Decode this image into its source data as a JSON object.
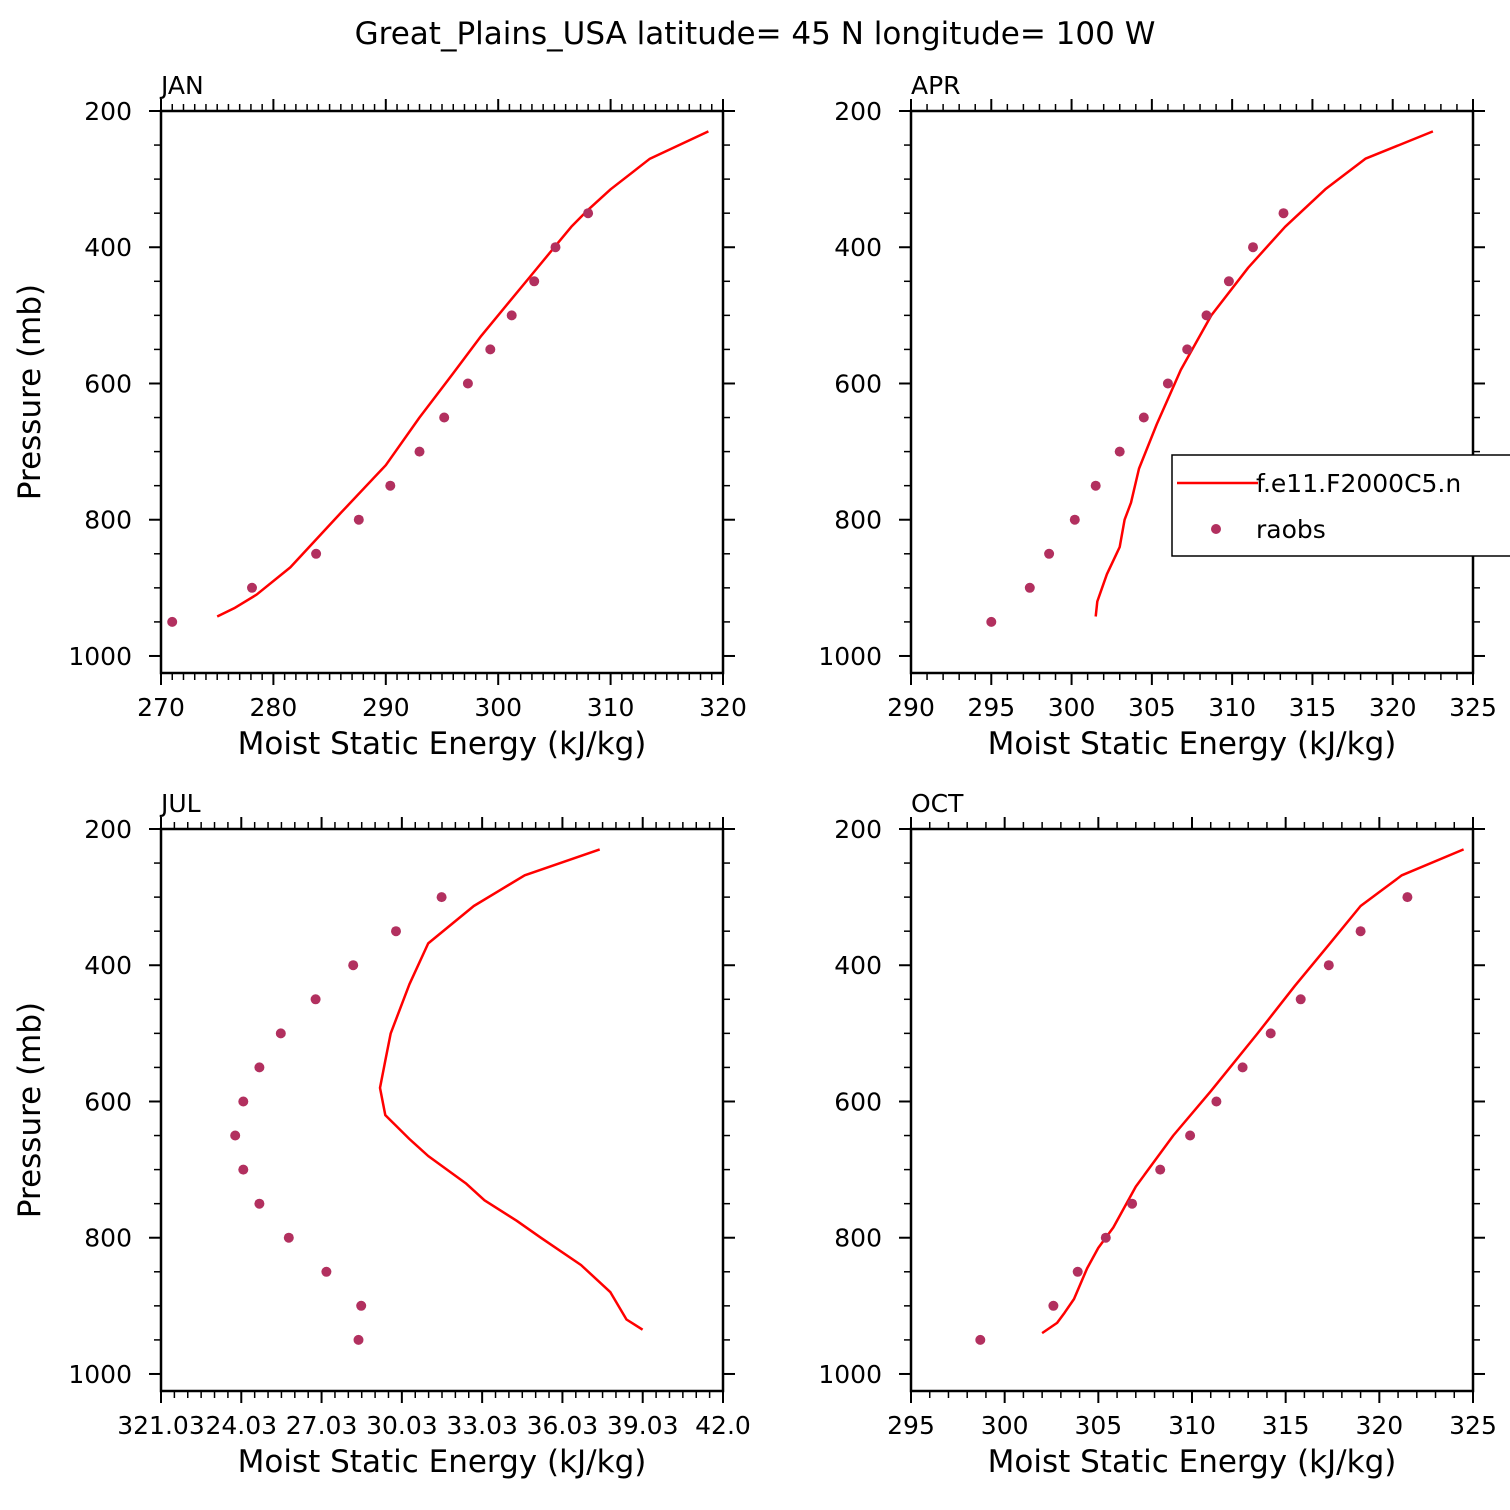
{
  "title": "Great_Plains_USA  latitude= 45 N longitude= 100 W",
  "colors": {
    "model": "#ff0000",
    "obs": "#b2305f",
    "axis": "#000000"
  },
  "legend": {
    "placement": "right, inside APR panel (clipped at page edge)",
    "entries": [
      "f.e11.F2000C5.n",
      "raobs"
    ]
  },
  "chart_data": [
    {
      "type": "line+scatter",
      "label": "JAN",
      "xlabel": "Moist Static Energy (kJ/kg)",
      "ylabel": "Pressure (mb)",
      "xlim": [
        270,
        320
      ],
      "ylim": [
        1025,
        200
      ],
      "y_scale": "linear, inverted",
      "xticks": [
        "270",
        "280",
        "290",
        "300",
        "310",
        "320"
      ],
      "yticks": [
        "200",
        "400",
        "600",
        "800",
        "1000"
      ],
      "series": [
        {
          "name": "f.e11.F2000C5.n",
          "kind": "line",
          "x": [
            318.7,
            313.5,
            310.0,
            308.0,
            306.5,
            305.0,
            303.0,
            301.0,
            298.5,
            296.0,
            293.0,
            290.0,
            286.0,
            281.5,
            278.5,
            276.5,
            275.0
          ],
          "y": [
            230,
            270,
            315,
            345,
            370,
            400,
            440,
            480,
            530,
            585,
            650,
            720,
            790,
            870,
            910,
            930,
            942
          ]
        },
        {
          "name": "raobs",
          "kind": "scatter",
          "x": [
            308.0,
            305.1,
            303.2,
            301.2,
            299.3,
            297.3,
            295.2,
            293.0,
            290.4,
            287.6,
            283.8,
            278.1,
            271.0
          ],
          "y": [
            350,
            400,
            450,
            500,
            550,
            600,
            650,
            700,
            750,
            800,
            850,
            900,
            950
          ]
        }
      ]
    },
    {
      "type": "line+scatter",
      "label": "APR",
      "xlabel": "Moist Static Energy (kJ/kg)",
      "ylabel": "",
      "xlim": [
        290,
        325
      ],
      "ylim": [
        1025,
        200
      ],
      "y_scale": "linear, inverted",
      "xticks": [
        "290",
        "295",
        "300",
        "305",
        "310",
        "315",
        "320",
        "325"
      ],
      "yticks": [
        "200",
        "400",
        "600",
        "800",
        "1000"
      ],
      "series": [
        {
          "name": "f.e11.F2000C5.n",
          "kind": "line",
          "x": [
            322.5,
            318.3,
            315.8,
            313.3,
            311.0,
            308.7,
            306.8,
            305.3,
            304.2,
            303.7,
            303.3,
            303.0,
            302.8,
            302.2,
            301.9,
            301.6,
            301.5
          ],
          "y": [
            230,
            270,
            315,
            370,
            430,
            500,
            580,
            660,
            725,
            775,
            800,
            840,
            850,
            880,
            900,
            920,
            942
          ]
        },
        {
          "name": "raobs",
          "kind": "scatter",
          "x": [
            313.2,
            311.3,
            309.8,
            308.4,
            307.2,
            306.0,
            304.5,
            303.0,
            301.5,
            300.2,
            298.6,
            297.4,
            295.0
          ],
          "y": [
            350,
            400,
            450,
            500,
            550,
            600,
            650,
            700,
            750,
            800,
            850,
            900,
            950
          ]
        }
      ]
    },
    {
      "type": "line+scatter",
      "label": "JUL",
      "xlabel": "Moist Static Energy (kJ/kg)",
      "ylabel": "Pressure (mb)",
      "xlim": [
        321.03,
        342.0
      ],
      "ylim": [
        1025,
        200
      ],
      "y_scale": "linear, inverted",
      "xticks": [
        "321.03",
        "24.03",
        "27.03",
        "30.03",
        "33.03",
        "36.03",
        "39.03",
        "42.0"
      ],
      "yticks": [
        "200",
        "400",
        "600",
        "800",
        "1000"
      ],
      "series": [
        {
          "name": "f.e11.F2000C5.n",
          "kind": "line",
          "x": [
            337.4,
            334.6,
            332.7,
            331.0,
            330.3,
            329.6,
            329.4,
            329.2,
            329.4,
            330.3,
            331.0,
            332.4,
            333.1,
            334.3,
            335.2,
            336.7,
            337.8,
            338.4,
            339.0
          ],
          "y": [
            230,
            268,
            313,
            368,
            428,
            500,
            540,
            580,
            620,
            655,
            680,
            720,
            745,
            775,
            800,
            840,
            880,
            920,
            935
          ]
        },
        {
          "name": "raobs",
          "kind": "scatter",
          "x": [
            331.5,
            329.8,
            328.2,
            326.8,
            325.5,
            324.7,
            324.1,
            323.8,
            324.1,
            324.7,
            325.8,
            327.2,
            328.5,
            328.4
          ],
          "y": [
            300,
            350,
            400,
            450,
            500,
            550,
            600,
            650,
            700,
            750,
            800,
            850,
            900,
            950
          ]
        }
      ]
    },
    {
      "type": "line+scatter",
      "label": "OCT",
      "xlabel": "Moist Static Energy (kJ/kg)",
      "ylabel": "",
      "xlim": [
        295,
        325
      ],
      "ylim": [
        1025,
        200
      ],
      "y_scale": "linear, inverted",
      "xticks": [
        "295",
        "300",
        "305",
        "310",
        "315",
        "320",
        "325"
      ],
      "yticks": [
        "200",
        "400",
        "600",
        "800",
        "1000"
      ],
      "series": [
        {
          "name": "f.e11.F2000C5.n",
          "kind": "line",
          "x": [
            324.5,
            321.2,
            319.0,
            317.3,
            315.5,
            313.5,
            311.0,
            309.0,
            307.0,
            305.8,
            305.0,
            304.4,
            303.7,
            303.2,
            302.8,
            302.0
          ],
          "y": [
            230,
            268,
            313,
            370,
            430,
            500,
            585,
            650,
            725,
            785,
            815,
            845,
            890,
            910,
            925,
            940
          ]
        },
        {
          "name": "raobs",
          "kind": "scatter",
          "x": [
            321.5,
            319.0,
            317.3,
            315.8,
            314.2,
            312.7,
            311.3,
            309.9,
            308.3,
            306.8,
            305.4,
            303.9,
            302.6,
            298.7
          ],
          "y": [
            300,
            350,
            400,
            450,
            500,
            550,
            600,
            650,
            700,
            750,
            800,
            850,
            900,
            950
          ]
        }
      ]
    }
  ]
}
